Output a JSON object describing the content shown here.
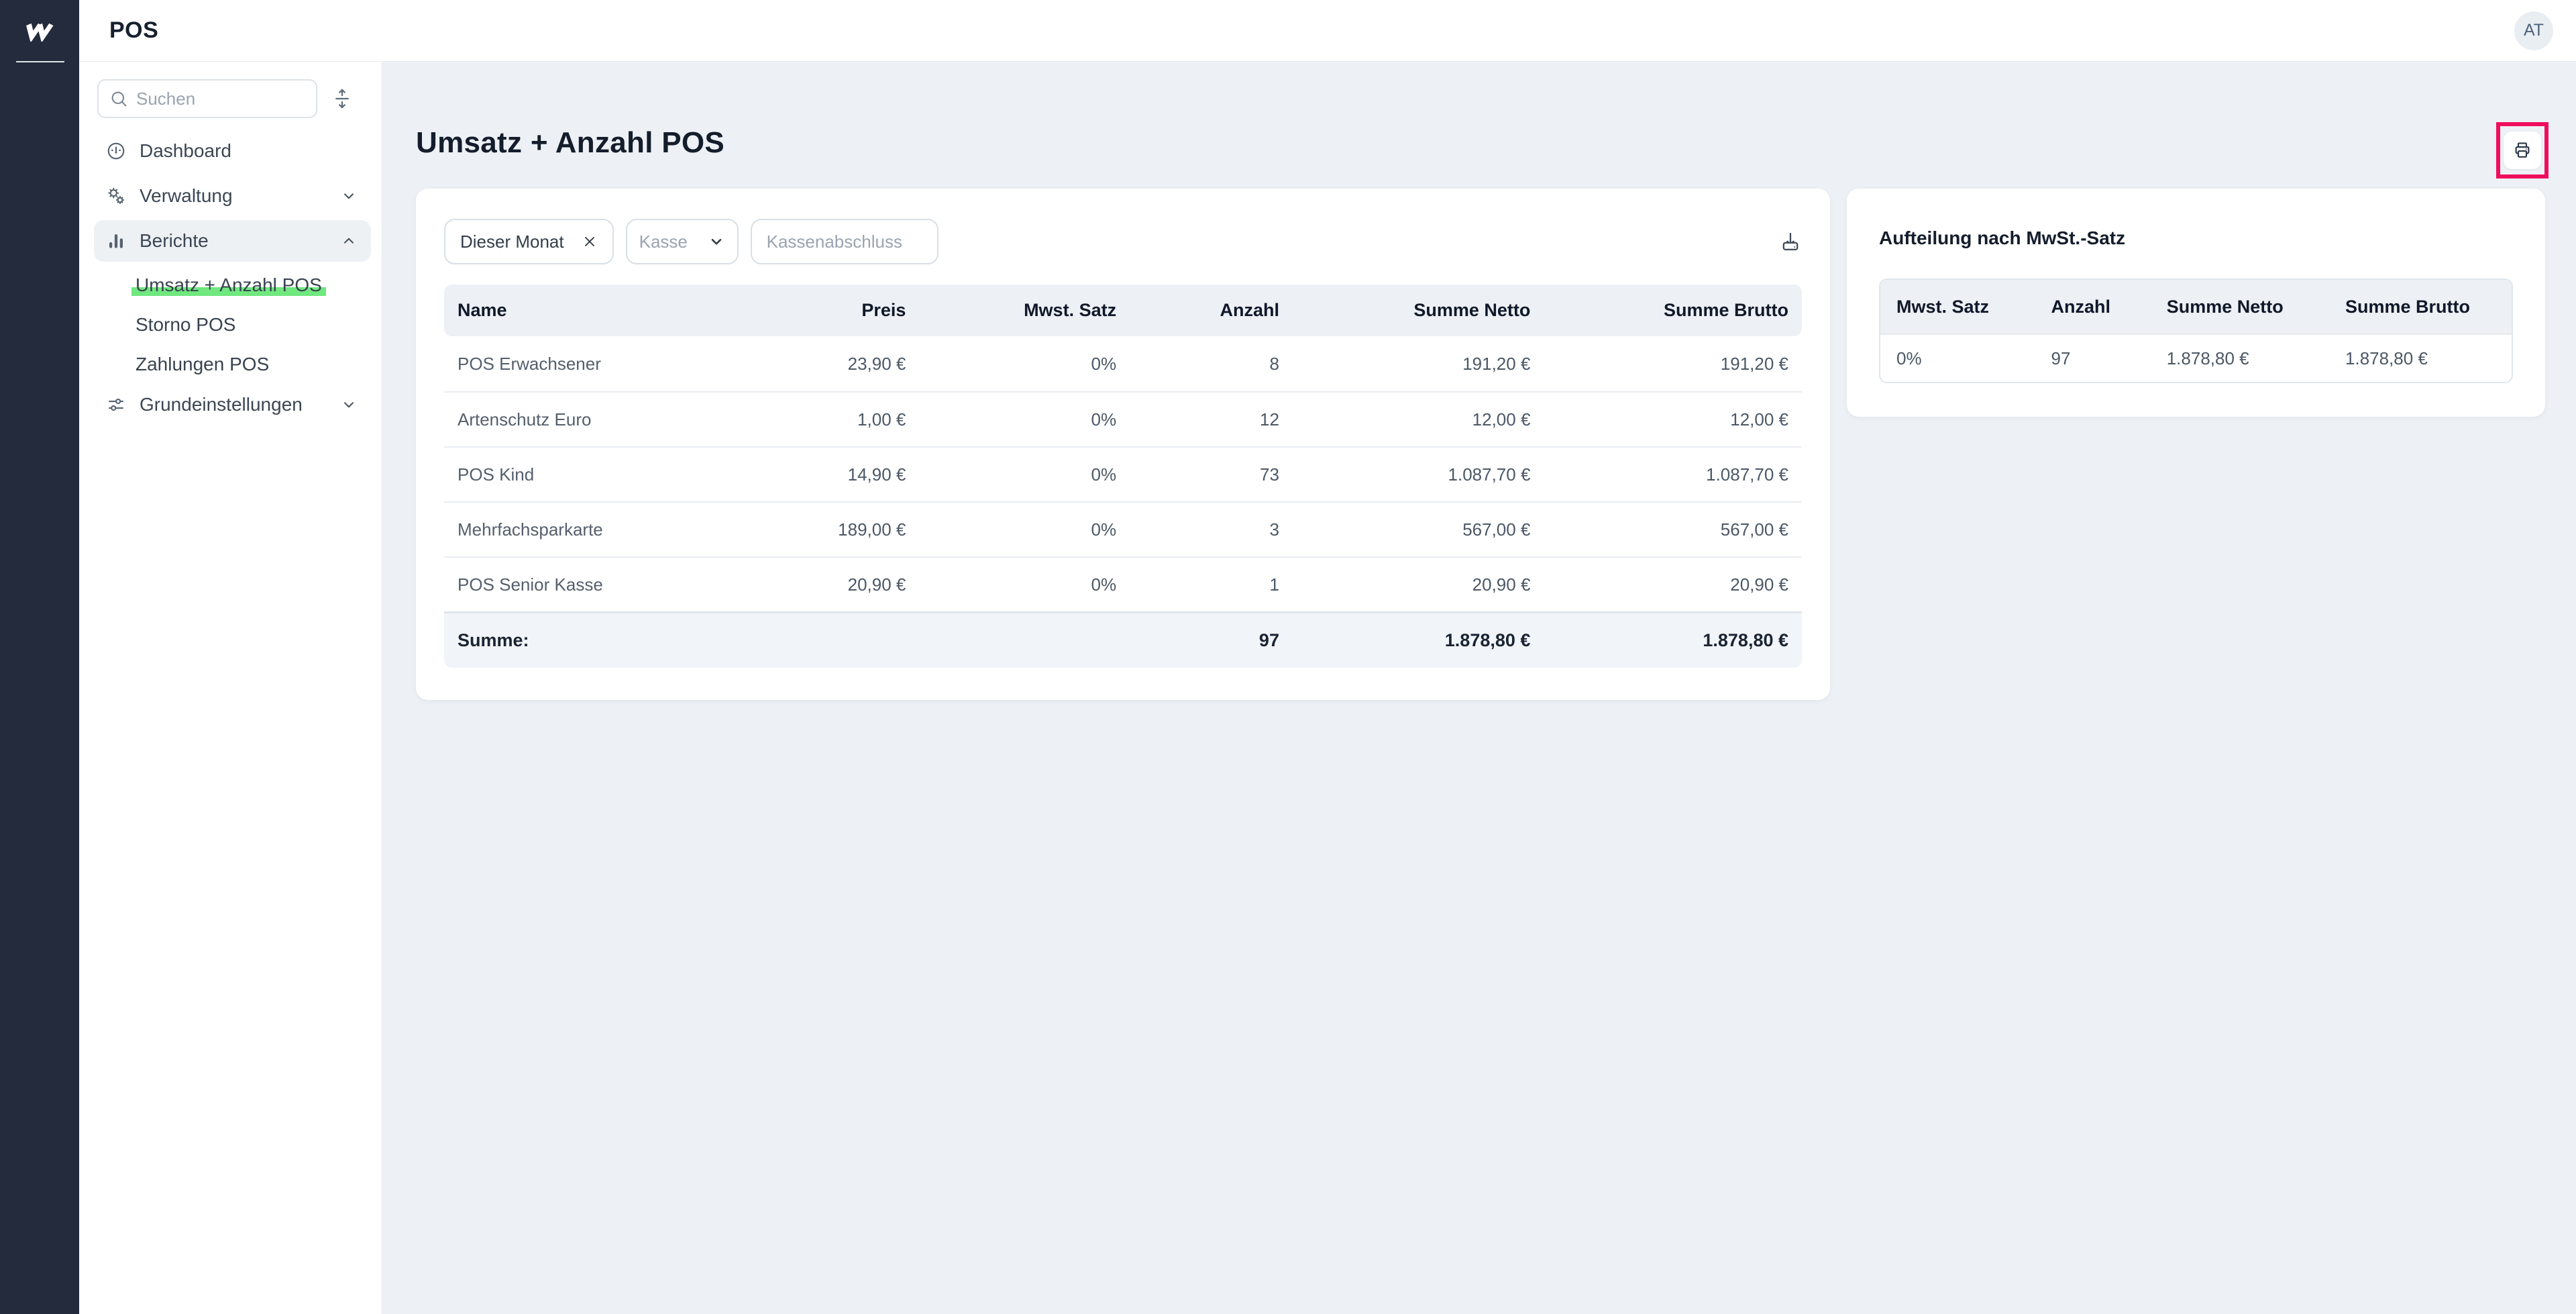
{
  "colors": {
    "accent_green": "#70e77f",
    "annotation_red": "#ef0e5e",
    "rail_bg": "#232b3c",
    "page_bg": "#edf1f5"
  },
  "header": {
    "title": "POS",
    "avatar_initials": "AT",
    "logo_icon": "w-brand-mark"
  },
  "sidebar": {
    "search_placeholder": "Suchen",
    "collapse_icon": "collapse-vertical-icon",
    "items": [
      {
        "label": "Dashboard",
        "icon": "gauge-icon"
      },
      {
        "label": "Verwaltung",
        "icon": "gears-icon",
        "chevron": "down"
      },
      {
        "label": "Berichte",
        "icon": "bar-chart-icon",
        "chevron": "up",
        "active": true,
        "children": [
          {
            "label": "Umsatz + Anzahl POS",
            "highlighted": true
          },
          {
            "label": "Storno POS"
          },
          {
            "label": "Zahlungen POS"
          }
        ]
      },
      {
        "label": "Grundeinstellungen",
        "icon": "sliders-icon",
        "chevron": "down"
      }
    ]
  },
  "main": {
    "title": "Umsatz + Anzahl POS",
    "print_icon": "printer-icon"
  },
  "filters": {
    "date_chip_label": "Dieser Monat",
    "remove_icon": "close-icon",
    "kasse_placeholder": "Kasse",
    "kassenabschluss_placeholder": "Kassenabschluss",
    "export_icon": "download-icon"
  },
  "report_table": {
    "columns": [
      "Name",
      "Preis",
      "Mwst. Satz",
      "Anzahl",
      "Summe Netto",
      "Summe Brutto"
    ],
    "rows": [
      [
        "POS Erwachsener",
        "23,90 €",
        "0%",
        "8",
        "191,20 €",
        "191,20 €"
      ],
      [
        "Artenschutz Euro",
        "1,00 €",
        "0%",
        "12",
        "12,00 €",
        "12,00 €"
      ],
      [
        "POS Kind",
        "14,90 €",
        "0%",
        "73",
        "1.087,70 €",
        "1.087,70 €"
      ],
      [
        "Mehrfachsparkarte",
        "189,00 €",
        "0%",
        "3",
        "567,00 €",
        "567,00 €"
      ],
      [
        "POS Senior Kasse",
        "20,90 €",
        "0%",
        "1",
        "20,90 €",
        "20,90 €"
      ]
    ],
    "summary": {
      "label": "Summe:",
      "preis": "",
      "mwst": "",
      "anzahl": "97",
      "netto": "1.878,80 €",
      "brutto": "1.878,80 €"
    }
  },
  "vat_panel": {
    "title": "Aufteilung nach MwSt.-Satz",
    "columns": [
      "Mwst. Satz",
      "Anzahl",
      "Summe Netto",
      "Summe Brutto"
    ],
    "rows": [
      [
        "0%",
        "97",
        "1.878,80 €",
        "1.878,80 €"
      ]
    ]
  }
}
